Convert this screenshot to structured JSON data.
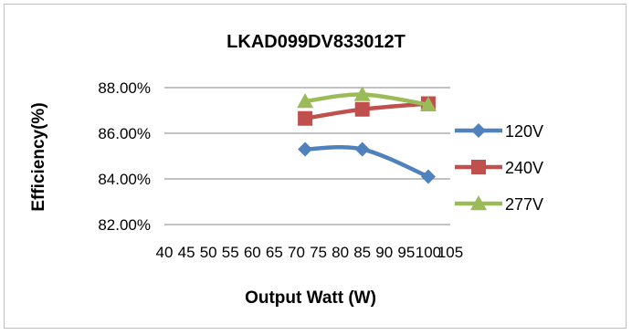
{
  "chart_data": {
    "type": "line",
    "title": "LKAD099DV833012T",
    "xlabel": "Output Watt (W)",
    "ylabel": "Efficiency(%)",
    "x_tick_labels": [
      "40",
      "45",
      "50",
      "55",
      "60",
      "65",
      "70",
      "75",
      "80",
      "85",
      "90",
      "95",
      "100",
      "105"
    ],
    "y_tick_labels": [
      "82.00%",
      "84.00%",
      "86.00%",
      "88.00%"
    ],
    "xlim": [
      40,
      105
    ],
    "ylim": [
      82,
      88
    ],
    "grid": "horizontal",
    "legend_position": "right",
    "smooth": true,
    "series": [
      {
        "name": "120V",
        "color": "#4f81bd",
        "marker": "diamond",
        "x": [
          72,
          85,
          100
        ],
        "y": [
          85.3,
          85.3,
          84.1
        ]
      },
      {
        "name": "240V",
        "color": "#c0504d",
        "marker": "square",
        "x": [
          72,
          85,
          100
        ],
        "y": [
          86.65,
          87.05,
          87.3
        ]
      },
      {
        "name": "277V",
        "color": "#9bbb59",
        "marker": "triangle",
        "x": [
          72,
          85,
          100
        ],
        "y": [
          87.4,
          87.7,
          87.25
        ]
      }
    ]
  }
}
